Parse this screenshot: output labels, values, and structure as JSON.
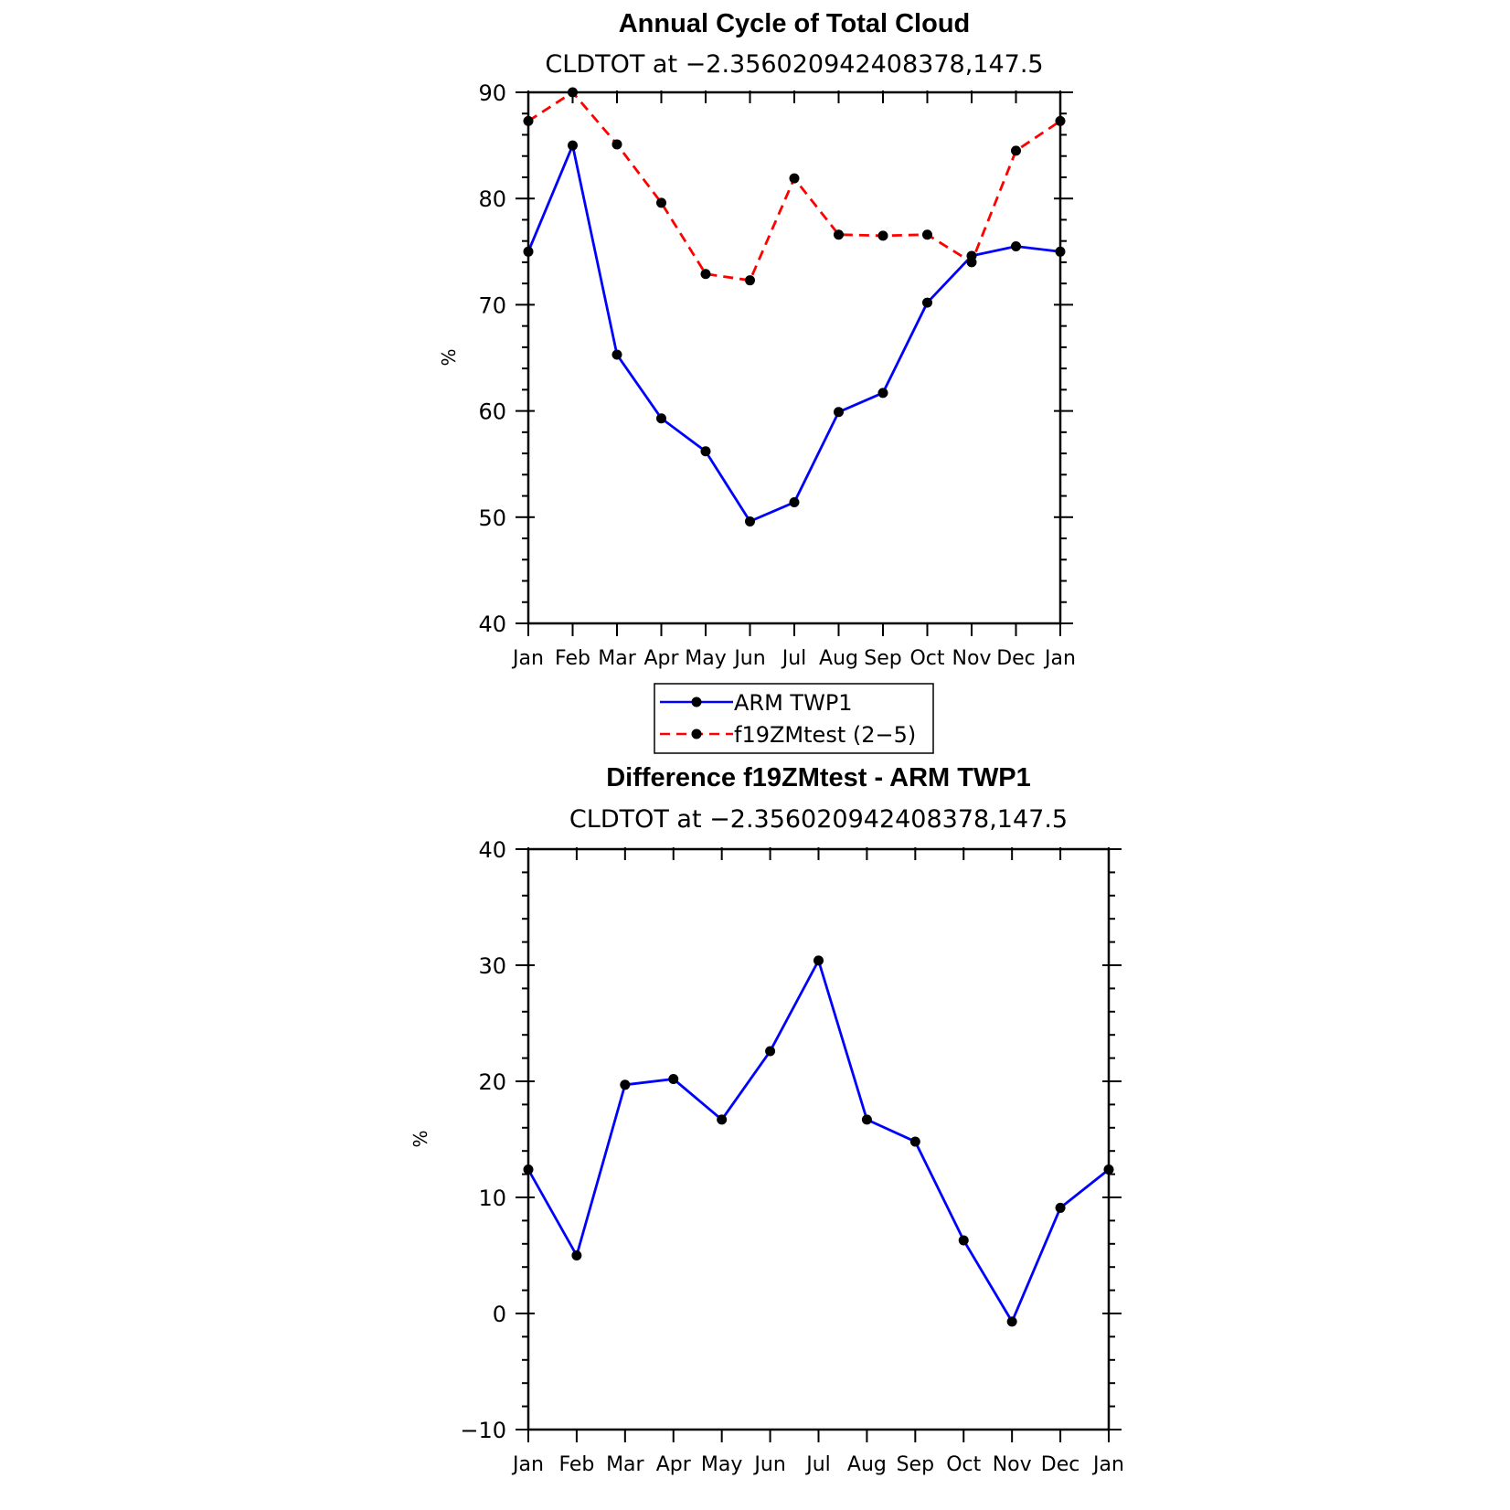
{
  "chart_data": [
    {
      "type": "line",
      "title": "Annual Cycle of Total Cloud",
      "subtitle": "CLDTOT at −2.356020942408378,147.5",
      "xlabel": "",
      "ylabel": "%",
      "categories": [
        "Jan",
        "Feb",
        "Mar",
        "Apr",
        "May",
        "Jun",
        "Jul",
        "Aug",
        "Sep",
        "Oct",
        "Nov",
        "Dec",
        "Jan"
      ],
      "ylim": [
        40,
        90
      ],
      "yticks": [
        "40",
        "50",
        "60",
        "70",
        "80",
        "90"
      ],
      "series": [
        {
          "name": "ARM TWP1",
          "color": "#0000ff",
          "dash": "solid",
          "values": [
            75.0,
            85.0,
            65.3,
            59.3,
            56.2,
            49.6,
            51.4,
            59.9,
            61.7,
            70.2,
            74.6,
            75.5,
            75.0
          ]
        },
        {
          "name": "f19ZMtest (2−5)",
          "color": "#ff0000",
          "dash": "dashed",
          "values": [
            87.3,
            90.0,
            85.1,
            79.6,
            72.9,
            72.3,
            81.9,
            76.6,
            76.5,
            76.6,
            74.0,
            84.5,
            87.3
          ]
        }
      ],
      "legend": "below"
    },
    {
      "type": "line",
      "title": "Difference f19ZMtest - ARM TWP1",
      "subtitle": "CLDTOT at −2.356020942408378,147.5",
      "xlabel": "",
      "ylabel": "%",
      "categories": [
        "Jan",
        "Feb",
        "Mar",
        "Apr",
        "May",
        "Jun",
        "Jul",
        "Aug",
        "Sep",
        "Oct",
        "Nov",
        "Dec",
        "Jan"
      ],
      "ylim": [
        -10,
        40
      ],
      "yticks": [
        "−10",
        "0",
        "10",
        "20",
        "30",
        "40"
      ],
      "series": [
        {
          "name": "Difference",
          "color": "#0000ff",
          "dash": "solid",
          "values": [
            12.4,
            5.0,
            19.7,
            20.2,
            16.7,
            22.6,
            30.4,
            16.7,
            14.8,
            6.3,
            -0.7,
            9.1,
            12.4
          ]
        }
      ]
    }
  ]
}
